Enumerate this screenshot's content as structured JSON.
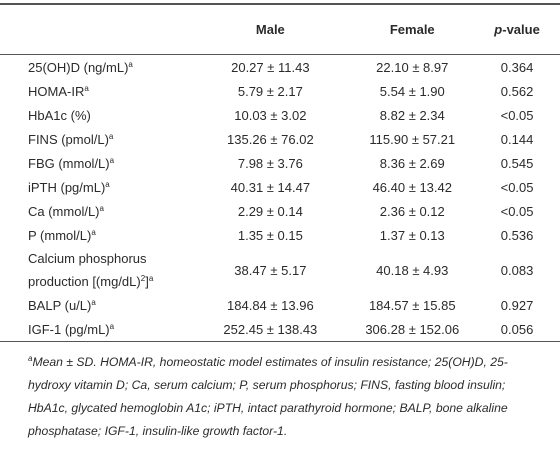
{
  "table": {
    "header": {
      "male": "Male",
      "female": "Female",
      "p_value": [
        {
          "t": "p",
          "italic": true
        },
        {
          "t": "-value",
          "italic": false
        }
      ]
    },
    "rows": [
      {
        "label": [
          {
            "t": "25(OH)D (ng/mL)",
            "sup": false
          },
          {
            "t": "a",
            "sup": true
          }
        ],
        "male": "20.27 ± 11.43",
        "female": "22.10 ± 8.97",
        "p": "0.364"
      },
      {
        "label": [
          {
            "t": "HOMA-IR",
            "sup": false
          },
          {
            "t": "a",
            "sup": true
          }
        ],
        "male": "5.79 ± 2.17",
        "female": "5.54 ± 1.90",
        "p": "0.562"
      },
      {
        "label": [
          {
            "t": "HbA1c (%)",
            "sup": false
          }
        ],
        "male": "10.03 ± 3.02",
        "female": "8.82 ± 2.34",
        "p": "<0.05"
      },
      {
        "label": [
          {
            "t": "FINS (pmol/L)",
            "sup": false
          },
          {
            "t": "a",
            "sup": true
          }
        ],
        "male": "135.26 ± 76.02",
        "female": "115.90 ± 57.21",
        "p": "0.144"
      },
      {
        "label": [
          {
            "t": "FBG (mmol/L)",
            "sup": false
          },
          {
            "t": "a",
            "sup": true
          }
        ],
        "male": "7.98 ± 3.76",
        "female": "8.36 ± 2.69",
        "p": "0.545"
      },
      {
        "label": [
          {
            "t": "iPTH (pg/mL)",
            "sup": false
          },
          {
            "t": "a",
            "sup": true
          }
        ],
        "male": "40.31 ± 14.47",
        "female": "46.40 ± 13.42",
        "p": "<0.05"
      },
      {
        "label": [
          {
            "t": "Ca (mmol/L)",
            "sup": false
          },
          {
            "t": "a",
            "sup": true
          }
        ],
        "male": "2.29 ± 0.14",
        "female": "2.36 ± 0.12",
        "p": "<0.05"
      },
      {
        "label": [
          {
            "t": "P (mmol/L)",
            "sup": false
          },
          {
            "t": "a",
            "sup": true
          }
        ],
        "male": "1.35 ± 0.15",
        "female": "1.37 ± 0.13",
        "p": "0.536"
      },
      {
        "label": [
          {
            "t": "Calcium phosphorus production [(mg/dL)",
            "sup": false
          },
          {
            "t": "2",
            "sup": true
          },
          {
            "t": "]",
            "sup": false
          },
          {
            "t": "a",
            "sup": true
          }
        ],
        "male": "38.47 ± 5.17",
        "female": "40.18 ± 4.93",
        "p": "0.083"
      },
      {
        "label": [
          {
            "t": "BALP (u/L)",
            "sup": false
          },
          {
            "t": "a",
            "sup": true
          }
        ],
        "male": "184.84 ± 13.96",
        "female": "184.57 ± 15.85",
        "p": "0.927"
      },
      {
        "label": [
          {
            "t": "IGF-1 (pg/mL)",
            "sup": false
          },
          {
            "t": "a",
            "sup": true
          }
        ],
        "male": "252.45 ± 138.43",
        "female": "306.28 ± 152.06",
        "p": "0.056"
      }
    ]
  },
  "footnote": {
    "marker": "a",
    "text": "Mean ± SD. HOMA-IR, homeostatic model estimates of insulin resistance; 25(OH)D, 25-hydroxy vitamin D; Ca, serum calcium; P, serum phosphorus; FINS, fasting blood insulin; HbA1c, glycated hemoglobin A1c; iPTH, intact parathyroid hormone; BALP, bone alkaline phosphatase; IGF-1, insulin-like growth factor-1."
  }
}
